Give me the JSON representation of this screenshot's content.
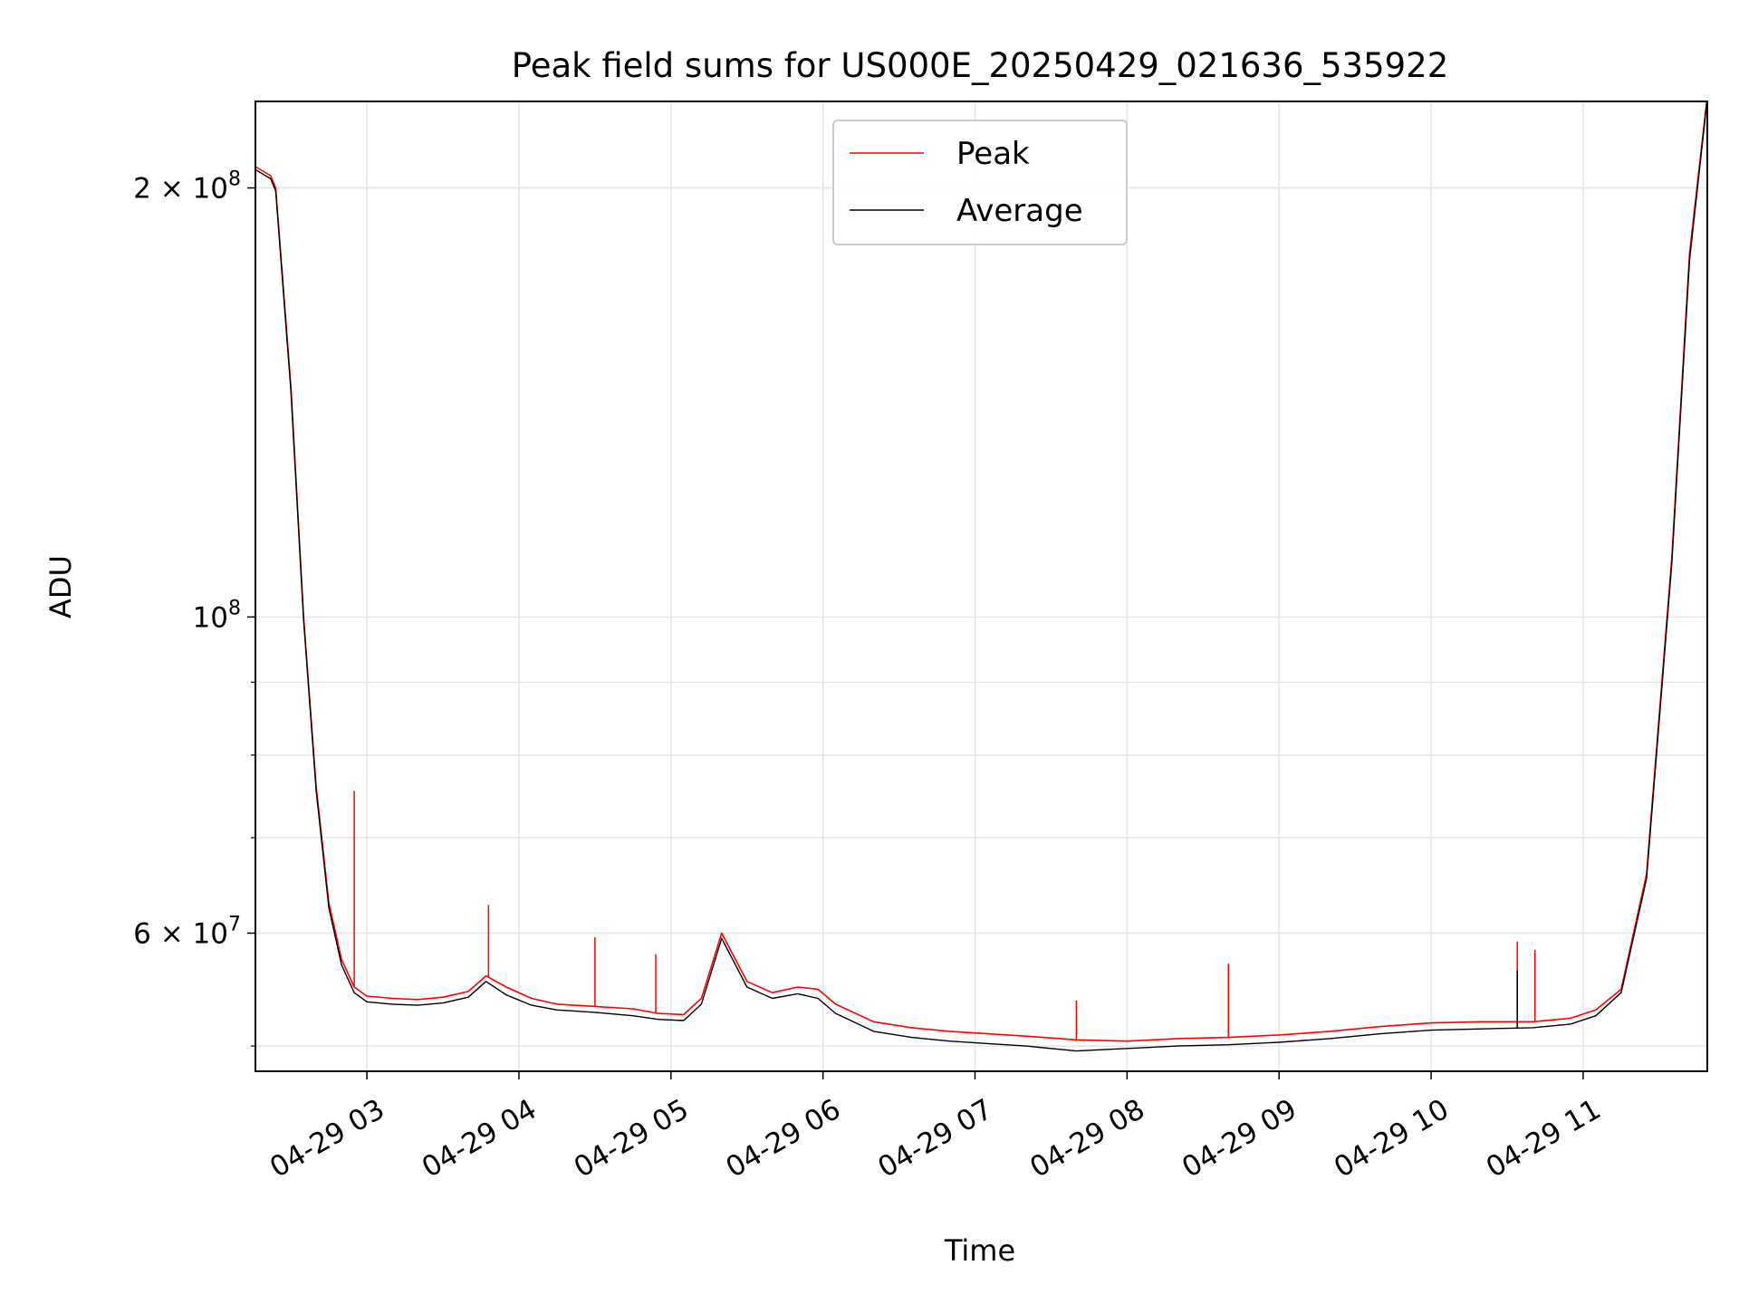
{
  "chart_data": {
    "type": "line",
    "title": "Peak field sums for US000E_20250429_021636_535922",
    "xlabel": "Time",
    "ylabel": "ADU",
    "yscale": "log",
    "ylim": [
      48000000,
      230000000
    ],
    "xlim": [
      "2025-04-29 02:16",
      "2025-04-29 11:49"
    ],
    "grid": true,
    "legend": {
      "placement": "upper center"
    },
    "x_ticks": [
      "04-29 03",
      "04-29 04",
      "04-29 05",
      "04-29 06",
      "04-29 07",
      "04-29 08",
      "04-29 09",
      "04-29 10",
      "04-29 11"
    ],
    "x_tick_times": [
      "2025-04-29 03:00",
      "2025-04-29 04:00",
      "2025-04-29 05:00",
      "2025-04-29 06:00",
      "2025-04-29 07:00",
      "2025-04-29 08:00",
      "2025-04-29 09:00",
      "2025-04-29 10:00",
      "2025-04-29 11:00"
    ],
    "y_ticks": [
      {
        "value": 200000000,
        "mantissa": "2",
        "exponent": "8"
      },
      {
        "value": 100000000,
        "mantissa": "",
        "exponent": "8"
      },
      {
        "value": 60000000,
        "mantissa": "6",
        "exponent": "7"
      }
    ],
    "y_minor_ticks": [
      50000000,
      70000000,
      80000000,
      90000000
    ],
    "series": [
      {
        "name": "Peak",
        "color": "#ff0000",
        "x": [
          "2025-04-29 02:16",
          "2025-04-29 02:22",
          "2025-04-29 02:24",
          "2025-04-29 02:30",
          "2025-04-29 02:35",
          "2025-04-29 02:40",
          "2025-04-29 02:45",
          "2025-04-29 02:50",
          "2025-04-29 02:55",
          "2025-04-29 03:00",
          "2025-04-29 03:10",
          "2025-04-29 03:20",
          "2025-04-29 03:30",
          "2025-04-29 03:40",
          "2025-04-29 03:47",
          "2025-04-29 03:55",
          "2025-04-29 04:05",
          "2025-04-29 04:15",
          "2025-04-29 04:30",
          "2025-04-29 04:45",
          "2025-04-29 04:55",
          "2025-04-29 05:05",
          "2025-04-29 05:12",
          "2025-04-29 05:20",
          "2025-04-29 05:30",
          "2025-04-29 05:40",
          "2025-04-29 05:50",
          "2025-04-29 05:58",
          "2025-04-29 06:05",
          "2025-04-29 06:20",
          "2025-04-29 06:35",
          "2025-04-29 06:50",
          "2025-04-29 07:05",
          "2025-04-29 07:20",
          "2025-04-29 07:40",
          "2025-04-29 08:00",
          "2025-04-29 08:20",
          "2025-04-29 08:40",
          "2025-04-29 09:00",
          "2025-04-29 09:20",
          "2025-04-29 09:40",
          "2025-04-29 10:00",
          "2025-04-29 10:20",
          "2025-04-29 10:40",
          "2025-04-29 10:55",
          "2025-04-29 11:05",
          "2025-04-29 11:15",
          "2025-04-29 11:25",
          "2025-04-29 11:35",
          "2025-04-29 11:42",
          "2025-04-29 11:49"
        ],
        "y": [
          207000000,
          204000000,
          200000000,
          145000000,
          100000000,
          76000000,
          63000000,
          57500000,
          55000000,
          54200000,
          54000000,
          53900000,
          54100000,
          54600000,
          56000000,
          55000000,
          54000000,
          53500000,
          53300000,
          53100000,
          52700000,
          52600000,
          54000000,
          60000000,
          55500000,
          54500000,
          55000000,
          54800000,
          53500000,
          52000000,
          51500000,
          51200000,
          51000000,
          50800000,
          50500000,
          50400000,
          50600000,
          50700000,
          50900000,
          51200000,
          51600000,
          51900000,
          52000000,
          52000000,
          52300000,
          53000000,
          54800000,
          66000000,
          110000000,
          180000000,
          232000000
        ],
        "spikes": [
          {
            "x": "2025-04-29 02:55",
            "y": 75500000
          },
          {
            "x": "2025-04-29 03:48",
            "y": 62800000
          },
          {
            "x": "2025-04-29 04:30",
            "y": 59600000
          },
          {
            "x": "2025-04-29 04:54",
            "y": 58000000
          },
          {
            "x": "2025-04-29 07:40",
            "y": 53800000
          },
          {
            "x": "2025-04-29 08:40",
            "y": 57100000
          },
          {
            "x": "2025-04-29 10:34",
            "y": 59200000
          },
          {
            "x": "2025-04-29 10:41",
            "y": 58400000
          }
        ]
      },
      {
        "name": "Average",
        "color": "#000000",
        "x": [
          "2025-04-29 02:16",
          "2025-04-29 02:22",
          "2025-04-29 02:24",
          "2025-04-29 02:30",
          "2025-04-29 02:35",
          "2025-04-29 02:40",
          "2025-04-29 02:45",
          "2025-04-29 02:50",
          "2025-04-29 02:55",
          "2025-04-29 03:00",
          "2025-04-29 03:10",
          "2025-04-29 03:20",
          "2025-04-29 03:30",
          "2025-04-29 03:40",
          "2025-04-29 03:47",
          "2025-04-29 03:55",
          "2025-04-29 04:05",
          "2025-04-29 04:15",
          "2025-04-29 04:30",
          "2025-04-29 04:45",
          "2025-04-29 04:55",
          "2025-04-29 05:05",
          "2025-04-29 05:12",
          "2025-04-29 05:20",
          "2025-04-29 05:30",
          "2025-04-29 05:40",
          "2025-04-29 05:50",
          "2025-04-29 05:58",
          "2025-04-29 06:05",
          "2025-04-29 06:20",
          "2025-04-29 06:35",
          "2025-04-29 06:50",
          "2025-04-29 07:05",
          "2025-04-29 07:20",
          "2025-04-29 07:40",
          "2025-04-29 08:00",
          "2025-04-29 08:20",
          "2025-04-29 08:40",
          "2025-04-29 09:00",
          "2025-04-29 09:20",
          "2025-04-29 09:40",
          "2025-04-29 10:00",
          "2025-04-29 10:20",
          "2025-04-29 10:40",
          "2025-04-29 10:55",
          "2025-04-29 11:05",
          "2025-04-29 11:15",
          "2025-04-29 11:25",
          "2025-04-29 11:35",
          "2025-04-29 11:42",
          "2025-04-29 11:49"
        ],
        "y": [
          206000000,
          203000000,
          199000000,
          144000000,
          99500000,
          75500000,
          62500000,
          57000000,
          54500000,
          53700000,
          53500000,
          53400000,
          53600000,
          54100000,
          55500000,
          54300000,
          53400000,
          53000000,
          52800000,
          52500000,
          52200000,
          52100000,
          53500000,
          59500000,
          55000000,
          54000000,
          54400000,
          54000000,
          52700000,
          51200000,
          50700000,
          50400000,
          50200000,
          50000000,
          49600000,
          49800000,
          50000000,
          50100000,
          50300000,
          50600000,
          51000000,
          51300000,
          51400000,
          51500000,
          51800000,
          52500000,
          54500000,
          65500000,
          109000000,
          178000000,
          231000000
        ],
        "spikes": [
          {
            "x": "2025-04-29 10:34",
            "y": 56500000
          }
        ]
      }
    ]
  }
}
